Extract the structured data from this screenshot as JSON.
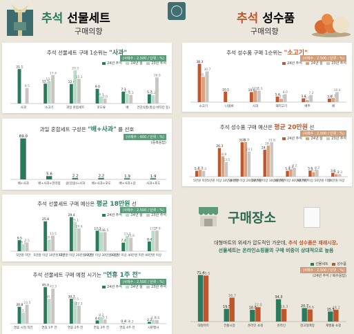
{
  "header_left": {
    "accent": "추석",
    "title": "선물세트",
    "subtitle": "구매의향"
  },
  "header_right": {
    "accent": "추석",
    "title": "성수품",
    "subtitle": "구매의향"
  },
  "colors": {
    "green_dark": "#2a7a5c",
    "green_mid": "#5fa383",
    "green_light": "#b9dbc9",
    "orange_dark": "#c0562a",
    "orange_mid": "#d9a27c",
    "gray": "#c9c6c1"
  },
  "legend_years": [
    "24년 추석",
    "24년 설",
    "23년 추석"
  ],
  "legend_place": [
    "선물세트",
    "성수품"
  ],
  "chart_data": [
    {
      "id": "gift_top1",
      "type": "bar",
      "title_pre": "추석 선물세트 구매 1순위는",
      "title_hl": "\"사과\"",
      "tag": "(사례수 : 2,500 / 단위 : %)",
      "categories": [
        "사과",
        "소고기",
        "과일 혼합세트",
        "포도류",
        "배",
        "건강식품(홍삼·비타민 등)"
      ],
      "series": [
        {
          "name": "24년 추석",
          "values": [
            21.1,
            12.2,
            12.0,
            9.0,
            7.3,
            5.7
          ]
        },
        {
          "name": "24년 설",
          "values": [
            null,
            13.8,
            20.3,
            4.3,
            5.9,
            5.2
          ]
        },
        {
          "name": "23년 추석",
          "values": [
            9.5,
            17.4,
            15.1,
            3.0,
            5.3,
            16.0
          ]
        }
      ],
      "extra_labels": [
        "8.4"
      ]
    },
    {
      "id": "gift_mix",
      "type": "bar",
      "title_pre": "과일 혼합세트 구성은",
      "title_hl": "\"배+사과\"",
      "title_post": "를 선호",
      "tag": "(사례수 : 600 / 단위 : %)",
      "note": "(중복응답)",
      "categories": [
        "배+사과",
        "배+사과+한라봉",
        "귤(감귤)+사과",
        "배+사과+포도",
        "배+사과+감",
        "사과+포도"
      ],
      "values": [
        69.0,
        5.6,
        2.2,
        2.2,
        1.9,
        1.9
      ]
    },
    {
      "id": "gift_budget",
      "type": "bar",
      "title_pre": "추석 선물세트 구매 예산은",
      "title_hl": "평균 18만원",
      "title_post": "선",
      "tag": "(사례수 : 2,500 / 단위 : %)",
      "categories": [
        "5만원 미만",
        "5만원 이상 10만원 미만",
        "10만원 이상 20만원 미만",
        "20만원 이상 30만원 미만",
        "30만원 이상 40만원 미만",
        "40만원 이상"
      ],
      "series": [
        {
          "name": "24년 추석",
          "values": [
            9.5,
            25.8,
            29.4,
            17.7,
            7.4,
            8.4
          ]
        },
        {
          "name": "24년 설",
          "values": [
            6.1,
            10.0,
            25.1,
            16.4,
            13.2,
            17.7
          ]
        },
        {
          "name": "23년 추석",
          "values": [
            7.5,
            13.5,
            19.6,
            16.5,
            11.6,
            17.9
          ]
        }
      ]
    },
    {
      "id": "gift_timing",
      "type": "bar",
      "title_pre": "추석 선물세트 구매 예정 시기는",
      "title_hl": "\"연휴 1주 전\"",
      "tag": "(사례수 : 2,500 / 단위 : %)",
      "categories": [
        "연휴 시작 직전",
        "연휴 1주 전",
        "연휴 2주 전",
        "연휴 3주 전",
        "연휴 4주 전",
        "시판행사"
      ],
      "series": [
        {
          "name": "24년 추석",
          "values": [
            20.8,
            45.0,
            30.7,
            4.0,
            0.4,
            2.2
          ]
        },
        {
          "name": "24년 설",
          "values": [
            13.5,
            30.5,
            27.5,
            8.2,
            0.3,
            4.7
          ]
        },
        {
          "name": "23년 추석",
          "values": [
            23.5,
            43.3,
            22.2,
            5.1,
            0.2,
            4.6
          ]
        }
      ]
    },
    {
      "id": "goods_top1",
      "type": "bar",
      "title_pre": "추석 성수품 구매 1순위는",
      "title_hl": "\"소고기\"",
      "tag": "(사례수 : 2,500 / 단위 : %)",
      "categories": [
        "소고기",
        "나물류",
        "사과",
        "돼지고기",
        "배추",
        "배"
      ],
      "series": [
        {
          "name": "24년 추석",
          "values": [
            38.3,
            10.5,
            10.0,
            5.6,
            3.8,
            3.6
          ]
        },
        {
          "name": "24년 설",
          "values": [
            25.3,
            null,
            11.7,
            3.3,
            2.0,
            4.1
          ]
        },
        {
          "name": "23년 추석",
          "values": [
            30.7,
            null,
            11.5,
            8.0,
            7.2,
            10.0
          ]
        }
      ]
    },
    {
      "id": "goods_budget",
      "type": "bar",
      "title_pre": "추석 성수품 구매 예산은",
      "title_hl": "평균 20만원",
      "title_post": "선",
      "tag": "(사례수 : 2,500 / 단위 : %)",
      "categories": [
        "5만원 미만",
        "5만원 이상 10만원 미만",
        "10만원 이상 20만원 미만",
        "20만원 이상 30만원 미만",
        "30만원 이상 40만원 미만",
        "40만원 이상 50만원 미만",
        "50만원 이상"
      ],
      "series": [
        {
          "name": "24년 추석",
          "values": [
            5.4,
            26.3,
            31.6,
            24.7,
            5.4,
            5.6,
            3.6
          ]
        },
        {
          "name": "24년 설",
          "values": [
            6.3,
            18.8,
            31.9,
            28.6,
            6.8,
            4.2,
            2.3
          ]
        },
        {
          "name": "23년 추석",
          "values": [
            5.3,
            13.5,
            23.1,
            31.6,
            8.2,
            6.2,
            2.3
          ]
        }
      ]
    },
    {
      "id": "place",
      "type": "bar",
      "tag": "(사례수 : 2,500 / 단위 : %)",
      "note": "(24년 추석 / 복수응답)",
      "categories": [
        "대형마트",
        "전통시장",
        "온라인 쇼핑",
        "온라인",
        "창고형매장",
        "제빵몰 쇼핑"
      ],
      "series": [
        {
          "name": "선물세트",
          "values": [
            71.4,
            19.5,
            18.0,
            34.3,
            20.7,
            15.5
          ]
        },
        {
          "name": "성수품",
          "values": [
            70.5,
            36.7,
            22.0,
            19.3,
            18.6,
            18.2
          ]
        }
      ]
    }
  ],
  "place_section": {
    "title": "구매장소",
    "desc_1": "대형마트의 위세가 압도적인 가운데,",
    "desc_2_o": "추석 성수품은 재래시장,",
    "desc_3_g": "선물세트는 온라인쇼핑몰의 구매 비중이 상대적으로 높음"
  }
}
